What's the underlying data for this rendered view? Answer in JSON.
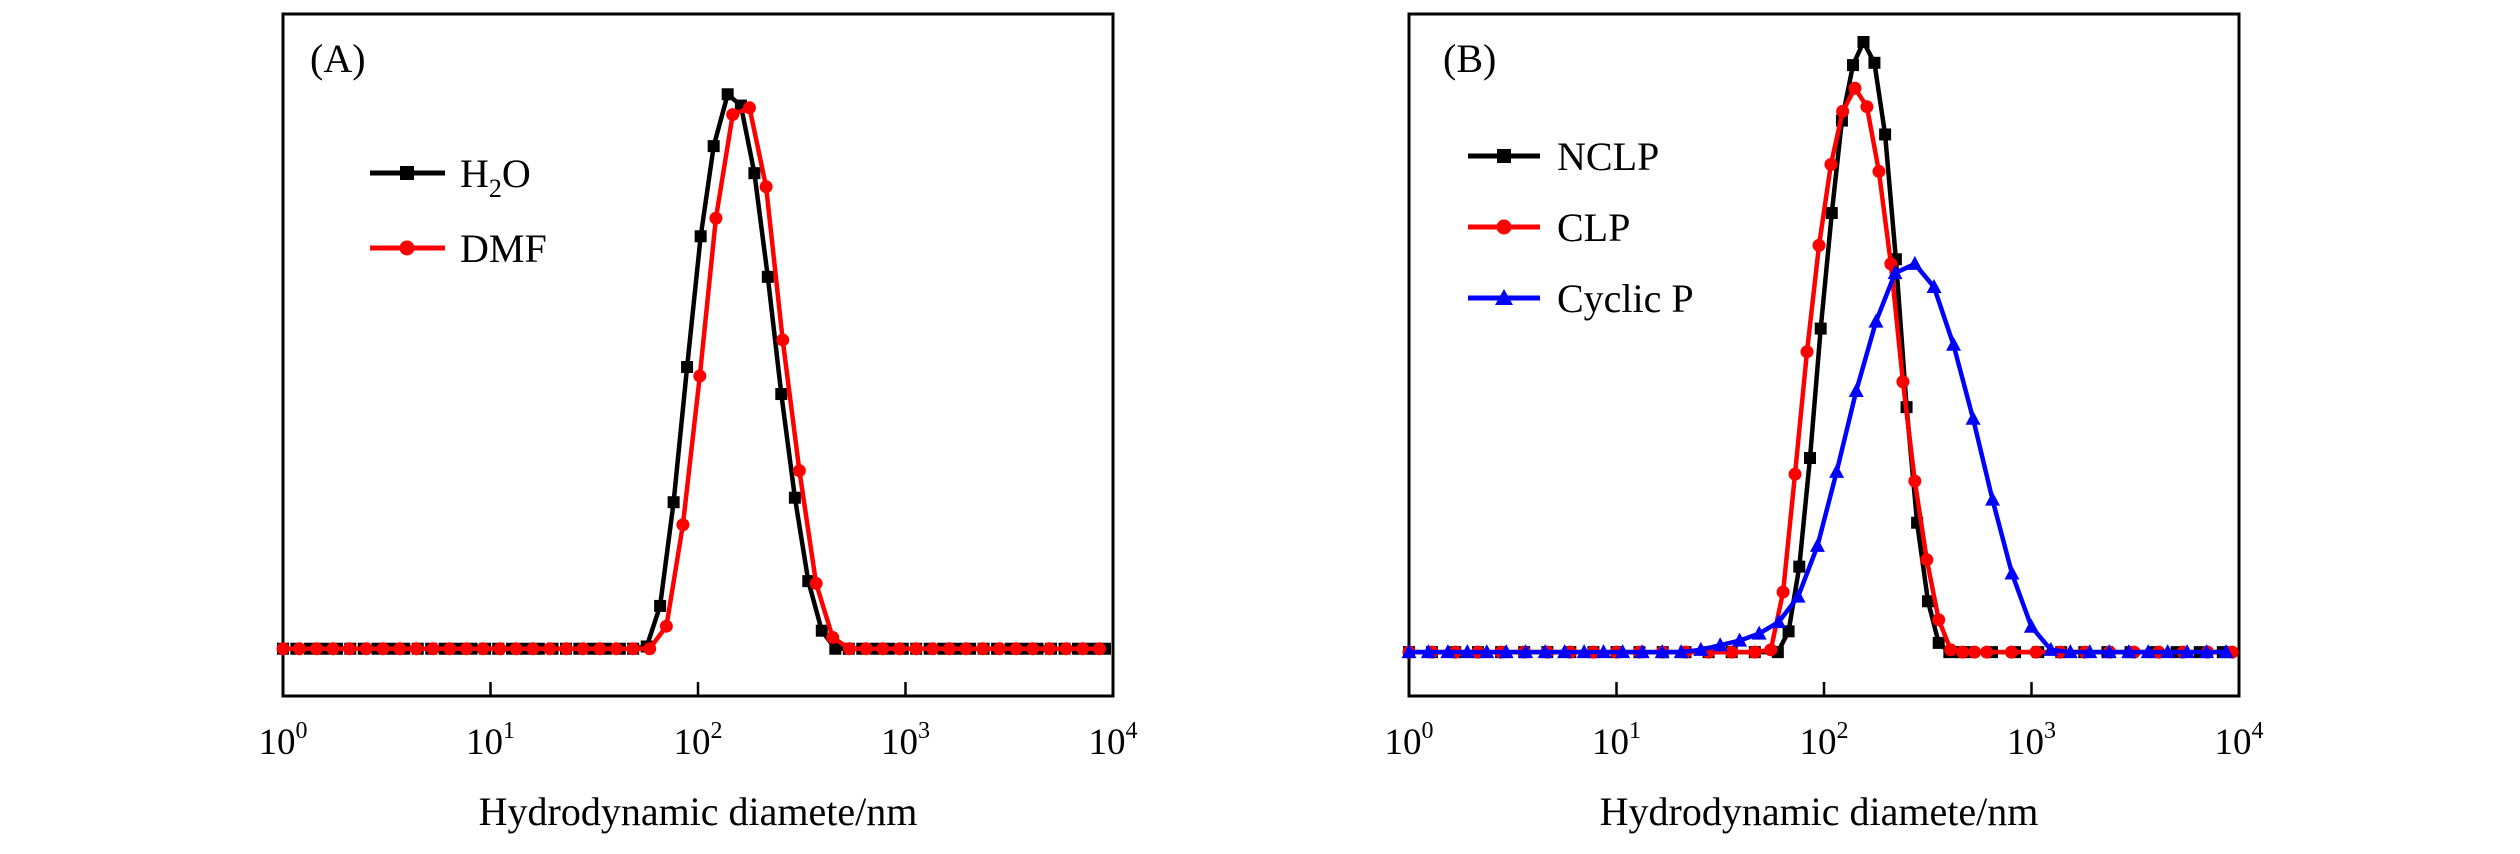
{
  "chart_data": [
    {
      "type": "line",
      "panel_label": "(A)",
      "title": "",
      "xlabel": "Hydrodynamic diamete/nm",
      "ylabel": "",
      "xscale": "log",
      "xlim": [
        1,
        10000
      ],
      "ylim": [
        0,
        26
      ],
      "x_ticks": [
        {
          "base": "10",
          "exp": "0"
        },
        {
          "base": "10",
          "exp": "1"
        },
        {
          "base": "10",
          "exp": "2"
        },
        {
          "base": "10",
          "exp": "3"
        },
        {
          "base": "10",
          "exp": "4"
        }
      ],
      "legend_position": "upper-left",
      "series": [
        {
          "name": "H2O",
          "name_main": "H",
          "name_sub": "2",
          "name_end": "O",
          "color": "#000000",
          "marker": "square",
          "x": [
            1.0,
            1.16,
            1.35,
            1.57,
            1.82,
            2.11,
            2.45,
            2.85,
            3.31,
            3.84,
            4.46,
            5.18,
            6.01,
            6.98,
            8.11,
            9.42,
            10.9,
            12.7,
            14.7,
            17.1,
            19.9,
            23.1,
            26.8,
            31.1,
            36.1,
            42.0,
            48.7,
            56.6,
            65.7,
            76.3,
            88.6,
            103,
            119,
            139,
            161,
            187,
            217,
            252,
            293,
            340,
            395,
            459,
            533,
            619,
            719,
            835,
            970,
            1126,
            1308,
            1519,
            1764,
            2049,
            2380,
            2764,
            3210,
            3728,
            4330,
            5029,
            5841,
            6783,
            7878,
            9150
          ],
          "y": [
            0.5,
            0.5,
            0.5,
            0.5,
            0.5,
            0.5,
            0.5,
            0.5,
            0.5,
            0.5,
            0.5,
            0.5,
            0.5,
            0.5,
            0.5,
            0.5,
            0.5,
            0.5,
            0.5,
            0.5,
            0.5,
            0.5,
            0.5,
            0.5,
            0.5,
            0.5,
            0.5,
            0.6,
            2.4,
            7.0,
            13.0,
            18.8,
            22.8,
            25.1,
            24.6,
            21.6,
            17.0,
            11.8,
            7.2,
            3.5,
            1.3,
            0.5,
            0.5,
            0.5,
            0.5,
            0.5,
            0.5,
            0.5,
            0.5,
            0.5,
            0.5,
            0.5,
            0.5,
            0.5,
            0.5,
            0.5,
            0.5,
            0.5,
            0.5,
            0.5,
            0.5,
            0.5
          ]
        },
        {
          "name": "DMF",
          "color": "#ff0000",
          "marker": "circle",
          "x": [
            1.0,
            1.2,
            1.45,
            1.74,
            2.09,
            2.52,
            3.03,
            3.65,
            4.39,
            5.28,
            6.36,
            7.65,
            9.2,
            11.1,
            13.3,
            16.0,
            19.3,
            23.2,
            27.9,
            33.6,
            40.4,
            48.6,
            58.5,
            70.4,
            84.6,
            102,
            122,
            147,
            177,
            213,
            256,
            308,
            371,
            446,
            537,
            646,
            777,
            935,
            1125,
            1353,
            1628,
            1959,
            2357,
            2836,
            3412,
            4105,
            4939,
            5942,
            7150,
            8602
          ],
          "y": [
            0.5,
            0.5,
            0.5,
            0.5,
            0.5,
            0.5,
            0.5,
            0.5,
            0.5,
            0.5,
            0.5,
            0.5,
            0.5,
            0.5,
            0.5,
            0.5,
            0.5,
            0.5,
            0.5,
            0.5,
            0.5,
            0.5,
            0.5,
            1.5,
            6.0,
            12.6,
            19.6,
            24.2,
            24.5,
            21.0,
            14.2,
            8.4,
            3.4,
            1.0,
            0.5,
            0.5,
            0.5,
            0.5,
            0.5,
            0.5,
            0.5,
            0.5,
            0.5,
            0.5,
            0.5,
            0.5,
            0.5,
            0.5,
            0.5,
            0.5
          ]
        }
      ]
    },
    {
      "type": "line",
      "panel_label": "(B)",
      "title": "",
      "xlabel": "Hydrodynamic diamete/nm",
      "ylabel": "",
      "xscale": "log",
      "xlim": [
        1,
        10000
      ],
      "ylim": [
        0,
        27
      ],
      "x_ticks": [
        {
          "base": "10",
          "exp": "0"
        },
        {
          "base": "10",
          "exp": "1"
        },
        {
          "base": "10",
          "exp": "2"
        },
        {
          "base": "10",
          "exp": "3"
        },
        {
          "base": "10",
          "exp": "4"
        }
      ],
      "legend_position": "upper-left",
      "series": [
        {
          "name": "NCLP",
          "color": "#000000",
          "marker": "square",
          "x": [
            1.0,
            1.29,
            1.67,
            2.15,
            2.78,
            3.59,
            4.64,
            5.99,
            7.74,
            10.0,
            12.9,
            16.7,
            21.5,
            27.8,
            35.9,
            46.4,
            59.9,
            67.5,
            76.0,
            85.6,
            96.4,
            109,
            122,
            138,
            155,
            175,
            197,
            222,
            250,
            281,
            317,
            357,
            402,
            453,
            510,
            645,
            833,
            1077,
            1391,
            1797,
            2322,
            3000,
            3875,
            5006,
            6468,
            8356
          ],
          "y": [
            0.6,
            0.6,
            0.6,
            0.6,
            0.6,
            0.6,
            0.6,
            0.6,
            0.6,
            0.6,
            0.6,
            0.6,
            0.6,
            0.6,
            0.6,
            0.6,
            0.6,
            1.5,
            4.3,
            9.0,
            14.6,
            19.6,
            23.6,
            26.0,
            27.0,
            26.1,
            23.0,
            17.6,
            11.2,
            6.2,
            2.8,
            1.0,
            0.6,
            0.6,
            0.6,
            0.6,
            0.6,
            0.6,
            0.6,
            0.6,
            0.6,
            0.6,
            0.6,
            0.6,
            0.6,
            0.6
          ]
        },
        {
          "name": "CLP",
          "color": "#ff0000",
          "marker": "circle",
          "x": [
            1.0,
            1.29,
            1.67,
            2.15,
            2.78,
            3.59,
            4.64,
            5.99,
            7.74,
            10.0,
            12.9,
            16.7,
            21.5,
            27.8,
            35.9,
            46.4,
            55.4,
            63.5,
            72.5,
            82.8,
            94.6,
            108,
            123,
            141,
            161,
            184,
            210,
            240,
            274,
            313,
            357,
            408,
            466,
            532,
            608,
            800,
            1050,
            1380,
            1810,
            2380,
            3120,
            4100,
            5380,
            7060,
            9270
          ],
          "y": [
            0.6,
            0.6,
            0.6,
            0.6,
            0.6,
            0.6,
            0.6,
            0.6,
            0.6,
            0.6,
            0.6,
            0.6,
            0.6,
            0.6,
            0.6,
            0.6,
            0.7,
            3.2,
            8.3,
            13.6,
            18.2,
            21.7,
            24.0,
            25.0,
            24.2,
            21.4,
            17.4,
            12.3,
            8.0,
            4.6,
            2.0,
            0.7,
            0.6,
            0.6,
            0.6,
            0.6,
            0.6,
            0.6,
            0.6,
            0.6,
            0.6,
            0.6,
            0.6,
            0.6,
            0.6
          ]
        },
        {
          "name": "Cyclic P",
          "color": "#0000ff",
          "marker": "triangle",
          "x": [
            1.0,
            1.24,
            1.54,
            1.91,
            2.37,
            2.94,
            3.65,
            4.53,
            5.62,
            6.98,
            8.66,
            10.7,
            13.3,
            16.6,
            20.5,
            25.5,
            31.6,
            39.2,
            48.7,
            60.4,
            75.0,
            93.0,
            115,
            143,
            178,
            220,
            274,
            339,
            421,
            523,
            649,
            805,
            999,
            1240,
            1539,
            1910,
            2370,
            2942,
            3651,
            4531,
            5623,
            6978,
            8660
          ],
          "y": [
            0.6,
            0.6,
            0.6,
            0.6,
            0.6,
            0.6,
            0.6,
            0.6,
            0.6,
            0.6,
            0.6,
            0.6,
            0.6,
            0.6,
            0.6,
            0.7,
            0.9,
            1.1,
            1.4,
            1.9,
            3.0,
            5.2,
            8.4,
            11.9,
            14.9,
            17.0,
            17.4,
            16.4,
            13.9,
            10.7,
            7.2,
            4.0,
            1.7,
            0.7,
            0.6,
            0.6,
            0.6,
            0.6,
            0.6,
            0.6,
            0.6,
            0.6,
            0.6
          ]
        }
      ]
    }
  ]
}
